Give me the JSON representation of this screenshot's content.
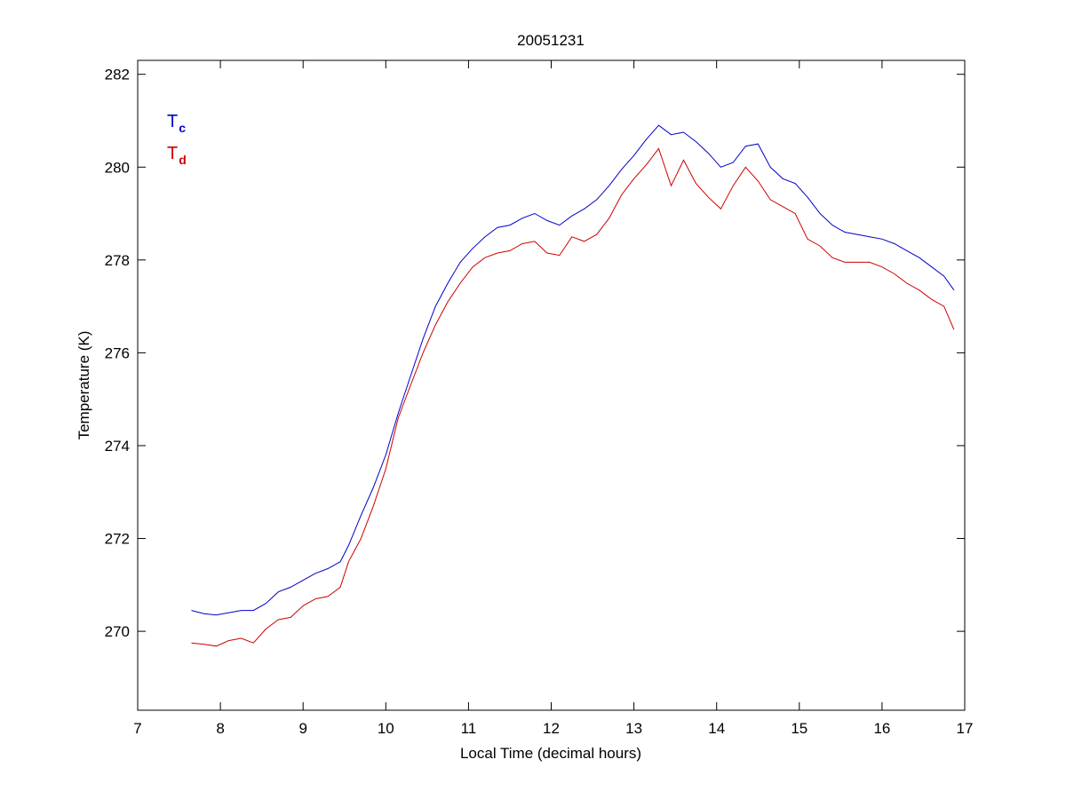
{
  "chart_data": {
    "type": "line",
    "title": "20051231",
    "xlabel": "Local Time (decimal hours)",
    "ylabel": "Temperature (K)",
    "xlim": [
      7,
      17
    ],
    "ylim": [
      268.3,
      282.3
    ],
    "xticks": [
      7,
      8,
      9,
      10,
      11,
      12,
      13,
      14,
      15,
      16,
      17
    ],
    "yticks": [
      270,
      272,
      274,
      276,
      278,
      280,
      282
    ],
    "grid": false,
    "legend": {
      "placement": "top-left",
      "entries": [
        {
          "main": "T",
          "sub": "c",
          "color": "#0000cc"
        },
        {
          "main": "T",
          "sub": "d",
          "color": "#cc0000"
        }
      ]
    },
    "series": [
      {
        "color": "#0000cc",
        "x": [
          7.65,
          7.8,
          7.95,
          8.1,
          8.25,
          8.4,
          8.55,
          8.7,
          8.85,
          9.0,
          9.15,
          9.3,
          9.45,
          9.55,
          9.7,
          9.85,
          10.0,
          10.15,
          10.3,
          10.45,
          10.6,
          10.75,
          10.9,
          11.05,
          11.2,
          11.35,
          11.5,
          11.65,
          11.8,
          11.95,
          12.1,
          12.25,
          12.4,
          12.55,
          12.7,
          12.85,
          13.0,
          13.15,
          13.3,
          13.45,
          13.6,
          13.75,
          13.9,
          14.05,
          14.2,
          14.35,
          14.5,
          14.65,
          14.8,
          14.95,
          15.1,
          15.25,
          15.4,
          15.55,
          15.7,
          15.85,
          16.0,
          16.15,
          16.3,
          16.45,
          16.6,
          16.75,
          16.87
        ],
        "y": [
          270.45,
          270.38,
          270.35,
          270.4,
          270.45,
          270.45,
          270.6,
          270.85,
          270.95,
          271.1,
          271.25,
          271.35,
          271.5,
          271.85,
          272.5,
          273.1,
          273.8,
          274.7,
          275.5,
          276.3,
          277.0,
          277.5,
          277.95,
          278.25,
          278.5,
          278.7,
          278.75,
          278.9,
          279.0,
          278.85,
          278.75,
          278.95,
          279.1,
          279.3,
          279.6,
          279.95,
          280.25,
          280.6,
          280.9,
          280.7,
          280.75,
          280.55,
          280.3,
          280.0,
          280.1,
          280.45,
          280.5,
          280.0,
          279.75,
          279.65,
          279.35,
          279.0,
          278.75,
          278.6,
          278.55,
          278.5,
          278.45,
          278.35,
          278.2,
          278.05,
          277.85,
          277.65,
          277.35
        ]
      },
      {
        "color": "#cc0000",
        "x": [
          7.65,
          7.8,
          7.95,
          8.1,
          8.25,
          8.4,
          8.55,
          8.7,
          8.85,
          9.0,
          9.15,
          9.3,
          9.45,
          9.55,
          9.7,
          9.85,
          10.0,
          10.15,
          10.3,
          10.45,
          10.6,
          10.75,
          10.9,
          11.05,
          11.2,
          11.35,
          11.5,
          11.65,
          11.8,
          11.95,
          12.1,
          12.25,
          12.4,
          12.55,
          12.7,
          12.85,
          13.0,
          13.15,
          13.3,
          13.45,
          13.6,
          13.75,
          13.9,
          14.05,
          14.2,
          14.35,
          14.5,
          14.65,
          14.8,
          14.95,
          15.1,
          15.25,
          15.4,
          15.55,
          15.7,
          15.85,
          16.0,
          16.15,
          16.3,
          16.45,
          16.6,
          16.75,
          16.87
        ],
        "y": [
          269.75,
          269.72,
          269.68,
          269.8,
          269.85,
          269.75,
          270.05,
          270.25,
          270.3,
          270.55,
          270.7,
          270.75,
          270.95,
          271.5,
          272.0,
          272.7,
          273.5,
          274.6,
          275.3,
          276.0,
          276.6,
          277.1,
          277.5,
          277.85,
          278.05,
          278.15,
          278.2,
          278.35,
          278.4,
          278.15,
          278.1,
          278.5,
          278.4,
          278.55,
          278.9,
          279.4,
          279.75,
          280.05,
          280.4,
          279.6,
          280.15,
          279.65,
          279.35,
          279.1,
          279.6,
          280.0,
          279.7,
          279.3,
          279.15,
          279.0,
          278.45,
          278.3,
          278.05,
          277.95,
          277.95,
          277.95,
          277.85,
          277.7,
          277.5,
          277.35,
          277.15,
          277.0,
          276.5
        ]
      }
    ]
  }
}
